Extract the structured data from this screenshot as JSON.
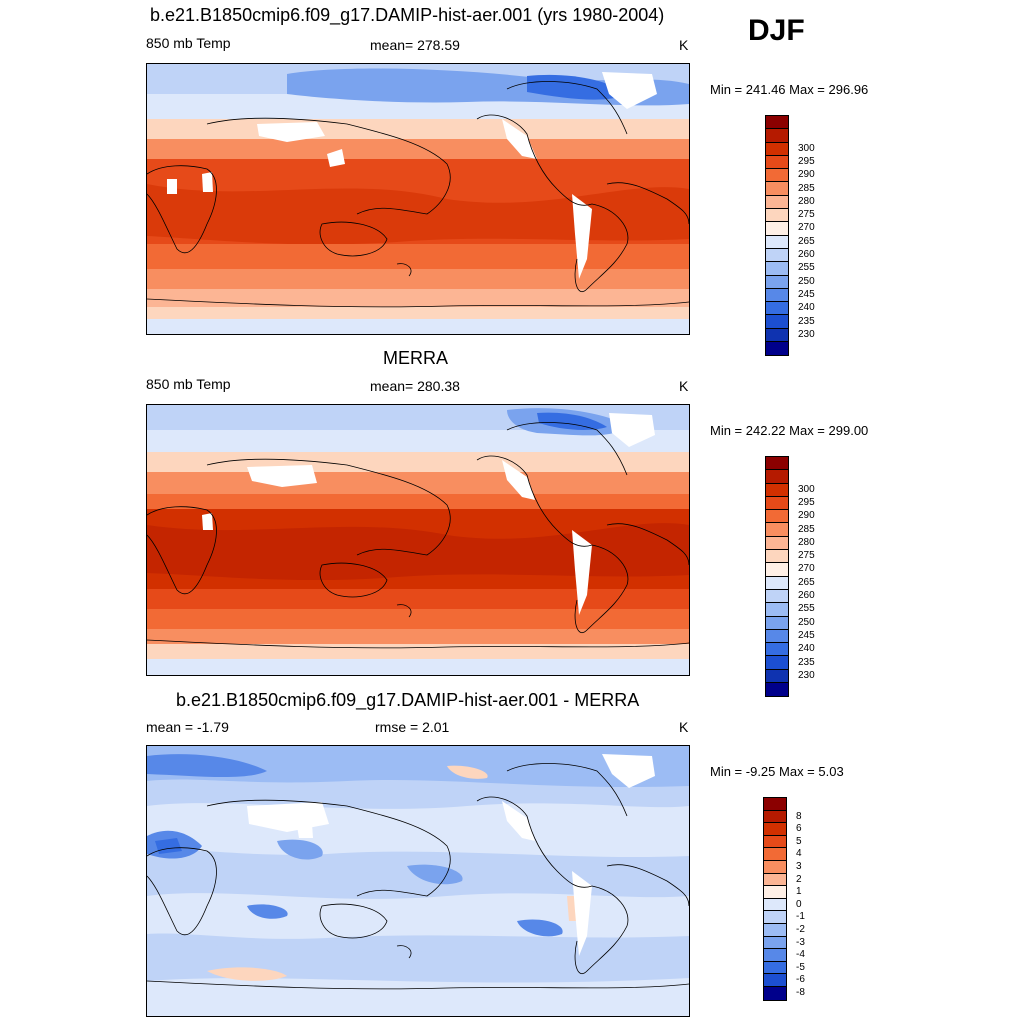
{
  "season": "DJF",
  "panels": [
    {
      "title": "b.e21.B1850cmip6.f09_g17.DAMIP-hist-aer.001 (yrs 1980-2004)",
      "left": "850 mb Temp",
      "center": "mean= 278.59",
      "right": "K",
      "minmax": "Min = 241.46 Max = 296.96",
      "colorbar": {
        "labels": [
          "300",
          "295",
          "290",
          "285",
          "280",
          "275",
          "270",
          "265",
          "260",
          "255",
          "250",
          "245",
          "240",
          "235",
          "230"
        ],
        "colors": [
          "#8b0000",
          "#b51a00",
          "#d23000",
          "#e64a19",
          "#f26a35",
          "#f88e60",
          "#fcb594",
          "#fdd6be",
          "#fff0e6",
          "#dde8fb",
          "#bfd3f7",
          "#9cbcf4",
          "#7aa3ee",
          "#5788e8",
          "#356de2",
          "#1c4fd1",
          "#0f33b0",
          "#00008b"
        ]
      }
    },
    {
      "title": "MERRA",
      "left": "850 mb Temp",
      "center": "mean= 280.38",
      "right": "K",
      "minmax": "Min = 242.22 Max = 299.00",
      "colorbar": {
        "labels": [
          "300",
          "295",
          "290",
          "285",
          "280",
          "275",
          "270",
          "265",
          "260",
          "255",
          "250",
          "245",
          "240",
          "235",
          "230"
        ],
        "colors": [
          "#8b0000",
          "#b51a00",
          "#d23000",
          "#e64a19",
          "#f26a35",
          "#f88e60",
          "#fcb594",
          "#fdd6be",
          "#fff0e6",
          "#dde8fb",
          "#bfd3f7",
          "#9cbcf4",
          "#7aa3ee",
          "#5788e8",
          "#356de2",
          "#1c4fd1",
          "#0f33b0",
          "#00008b"
        ]
      }
    },
    {
      "title": "b.e21.B1850cmip6.f09_g17.DAMIP-hist-aer.001 - MERRA",
      "left": "mean =  -1.79",
      "center": "rmse =   2.01",
      "right": "K",
      "minmax": "Min =  -9.25 Max =   5.03",
      "colorbar": {
        "labels": [
          "8",
          "6",
          "5",
          "4",
          "3",
          "2",
          "1",
          "0",
          "-1",
          "-2",
          "-3",
          "-4",
          "-5",
          "-6",
          "-8"
        ],
        "colors": [
          "#8b0000",
          "#b51a00",
          "#d23000",
          "#e64a19",
          "#f26a35",
          "#f88e60",
          "#fcb594",
          "#fff0e6",
          "#dde8fb",
          "#bfd3f7",
          "#9cbcf4",
          "#7aa3ee",
          "#5788e8",
          "#356de2",
          "#1c4fd1",
          "#00008b"
        ]
      }
    }
  ]
}
